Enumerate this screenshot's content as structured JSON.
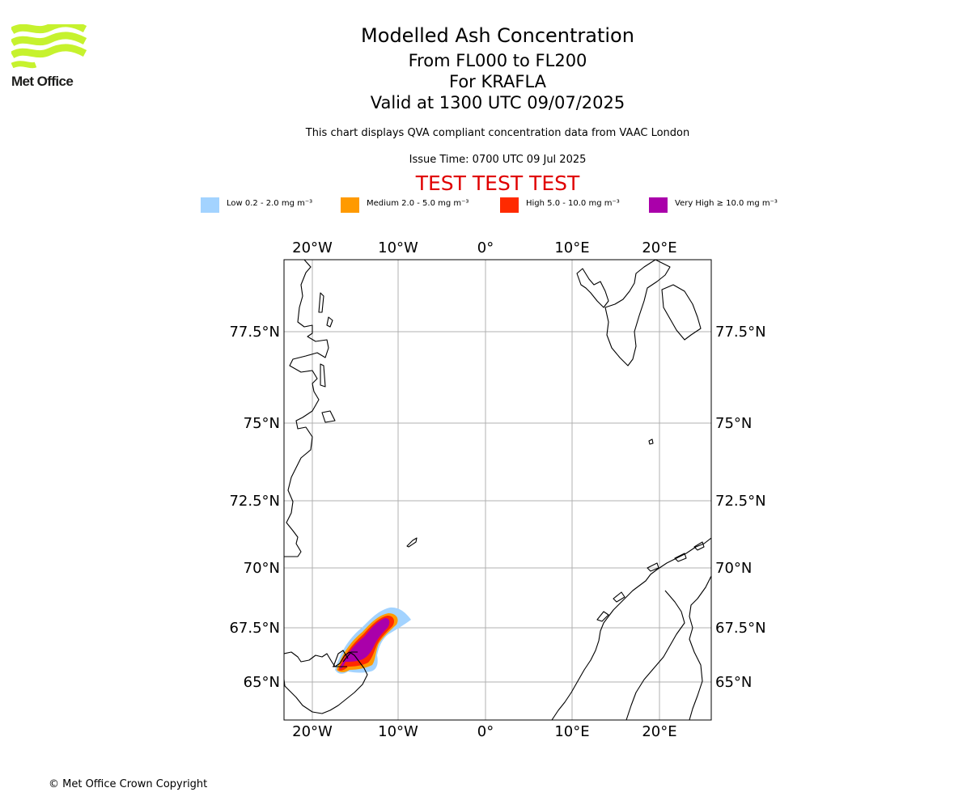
{
  "header": {
    "logo_text": "Met Office",
    "title": "Modelled Ash Concentration",
    "level_range": "From FL000 to FL200",
    "volcano": "For KRAFLA",
    "valid_time": "Valid at 1300 UTC 09/07/2025",
    "description": "This chart displays QVA compliant concentration data from VAAC London",
    "issue_time": "Issue Time: 0700 UTC 09 Jul 2025",
    "test_banner": "TEST TEST TEST"
  },
  "legend": [
    {
      "label": "Low 0.2 - 2.0 mg m⁻³",
      "color": "#a3d3ff"
    },
    {
      "label": "Medium 2.0 - 5.0 mg m⁻³",
      "color": "#ff9a00"
    },
    {
      "label": "High 5.0 - 10.0 mg m⁻³",
      "color": "#ff2a00"
    },
    {
      "label": "Very High ≥ 10.0 mg m⁻³",
      "color": "#aa00aa"
    }
  ],
  "map": {
    "lon_labels": [
      "20°W",
      "10°W",
      "0°",
      "10°E",
      "20°E"
    ],
    "lat_labels": [
      "77.5°N",
      "75°N",
      "72.5°N",
      "70°N",
      "67.5°N",
      "65°N"
    ],
    "gridline_color": "#b0b0b0",
    "coastline_color": "#000000"
  },
  "footer": {
    "copyright": "© Met Office Crown Copyright"
  }
}
